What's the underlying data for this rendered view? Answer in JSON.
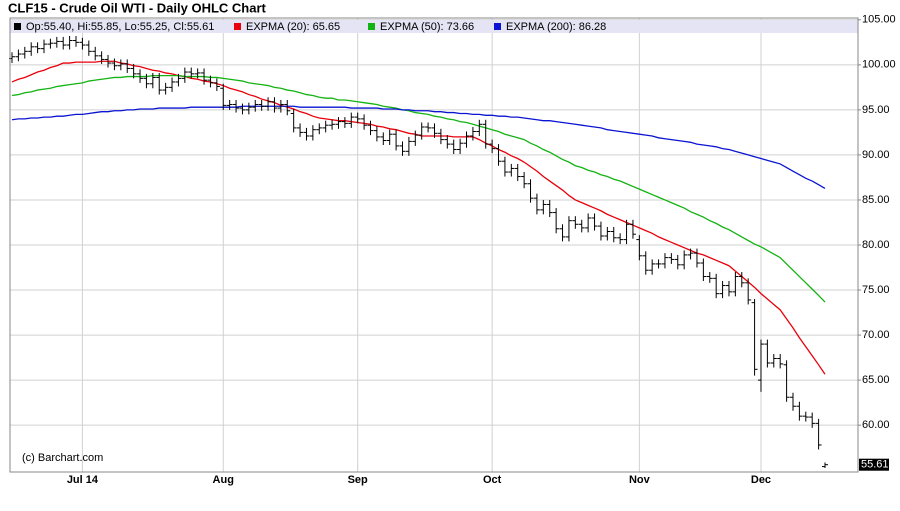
{
  "chart_data": {
    "type": "ohlc",
    "title": "CLF15 - Crude Oil WTI - Daily OHLC Chart",
    "watermark": "(c) Barchart.com",
    "categories": [
      null,
      null,
      null,
      null,
      null,
      null,
      null,
      null,
      null,
      null,
      null,
      "Jul 14",
      null,
      null,
      null,
      null,
      null,
      null,
      null,
      null,
      null,
      null,
      null,
      null,
      null,
      null,
      null,
      null,
      null,
      null,
      null,
      null,
      null,
      "Aug",
      null,
      null,
      null,
      null,
      null,
      null,
      null,
      null,
      null,
      null,
      null,
      null,
      null,
      null,
      null,
      null,
      null,
      null,
      null,
      null,
      "Sep",
      null,
      null,
      null,
      null,
      null,
      null,
      null,
      null,
      null,
      null,
      null,
      null,
      null,
      null,
      null,
      null,
      null,
      null,
      null,
      null,
      "Oct",
      null,
      null,
      null,
      null,
      null,
      null,
      null,
      null,
      null,
      null,
      null,
      null,
      null,
      null,
      null,
      null,
      null,
      null,
      null,
      null,
      null,
      null,
      "Nov",
      null,
      null,
      null,
      null,
      null,
      null,
      null,
      null,
      null,
      null,
      null,
      null,
      null,
      null,
      null,
      null,
      null,
      null,
      "Dec",
      null,
      null,
      null,
      null,
      null,
      null,
      null,
      null,
      null,
      null
    ],
    "ohlc": {
      "name": "Op:55.40, Hi:55.85, Lo:55.25, Cl:55.61",
      "color": "#000000",
      "open": [
        100.7,
        100.9,
        101.2,
        101.5,
        102.0,
        101.8,
        102.3,
        102.4,
        102.6,
        102.2,
        102.7,
        102.5,
        102.2,
        101.5,
        101.0,
        100.6,
        100.2,
        99.9,
        100.1,
        99.6,
        99.0,
        98.5,
        97.9,
        98.6,
        97.2,
        97.5,
        98.1,
        98.5,
        99.2,
        99.0,
        99.1,
        98.3,
        98.0,
        97.4,
        95.5,
        95.6,
        95.2,
        95.0,
        95.3,
        95.6,
        95.4,
        95.9,
        95.2,
        95.6,
        94.6,
        93.0,
        92.5,
        92.1,
        92.8,
        93.0,
        93.3,
        93.4,
        93.7,
        93.5,
        94.2,
        94.0,
        93.3,
        92.7,
        92.0,
        91.6,
        92.3,
        91.0,
        90.4,
        91.5,
        92.2,
        93.1,
        93.0,
        92.4,
        91.7,
        91.2,
        90.6,
        91.3,
        92.1,
        92.6,
        93.4,
        91.2,
        90.7,
        89.3,
        88.1,
        88.5,
        87.6,
        86.8,
        85.2,
        83.9,
        84.5,
        83.6,
        81.8,
        80.9,
        82.7,
        82.3,
        81.9,
        83.0,
        82.1,
        81.0,
        81.5,
        80.8,
        80.6,
        82.3,
        80.6,
        78.8,
        77.2,
        77.9,
        77.9,
        78.6,
        78.4,
        77.8,
        78.9,
        79.1,
        78.0,
        76.5,
        76.3,
        74.6,
        75.5,
        74.8,
        76.5,
        75.8,
        73.6,
        65.0,
        69.0,
        66.9,
        67.4,
        66.7,
        63.1,
        62.1,
        61.0,
        60.9,
        60.2,
        55.4
      ],
      "high": [
        101.4,
        101.7,
        102.0,
        102.5,
        102.5,
        102.8,
        102.9,
        103.1,
        103.1,
        103.2,
        103.2,
        103.0,
        102.7,
        102.0,
        101.5,
        101.1,
        100.7,
        100.6,
        100.6,
        100.1,
        99.5,
        99.0,
        99.1,
        99.1,
        98.0,
        98.6,
        99.0,
        99.7,
        99.7,
        99.6,
        99.6,
        98.8,
        98.5,
        97.9,
        96.1,
        96.1,
        95.7,
        95.8,
        96.1,
        96.1,
        96.4,
        96.4,
        96.1,
        96.1,
        95.1,
        93.5,
        93.0,
        93.3,
        93.5,
        93.8,
        93.9,
        94.2,
        94.2,
        94.7,
        94.7,
        94.5,
        93.8,
        93.2,
        92.5,
        92.8,
        92.8,
        91.5,
        92.0,
        92.7,
        93.6,
        93.6,
        93.5,
        92.9,
        92.2,
        91.7,
        91.8,
        92.6,
        93.1,
        93.9,
        93.9,
        91.7,
        91.2,
        89.8,
        89.0,
        89.0,
        88.1,
        87.3,
        85.7,
        85.0,
        85.0,
        84.1,
        82.3,
        83.2,
        83.2,
        82.8,
        83.5,
        83.5,
        82.6,
        82.0,
        82.0,
        81.3,
        82.8,
        82.8,
        81.1,
        79.3,
        78.4,
        78.4,
        79.1,
        79.1,
        78.9,
        79.4,
        79.6,
        79.6,
        78.5,
        77.0,
        76.8,
        76.0,
        76.0,
        77.0,
        77.0,
        76.3,
        74.0,
        69.5,
        69.5,
        67.9,
        67.9,
        67.2,
        63.6,
        62.6,
        61.5,
        61.4,
        60.7,
        55.85
      ],
      "low": [
        100.2,
        100.4,
        100.7,
        101.0,
        101.3,
        101.3,
        101.8,
        101.9,
        101.7,
        101.7,
        102.0,
        101.7,
        101.0,
        100.5,
        100.1,
        99.7,
        99.4,
        99.4,
        99.1,
        98.5,
        98.0,
        97.4,
        97.4,
        96.7,
        96.7,
        97.0,
        97.6,
        98.0,
        98.5,
        98.5,
        97.8,
        97.5,
        97.1,
        95.0,
        95.0,
        94.7,
        94.5,
        94.5,
        94.8,
        94.9,
        94.9,
        94.7,
        94.7,
        94.4,
        92.5,
        92.0,
        91.6,
        91.6,
        92.3,
        92.5,
        92.8,
        92.9,
        93.0,
        93.0,
        93.5,
        92.8,
        92.2,
        91.5,
        91.1,
        91.1,
        90.5,
        89.9,
        89.9,
        91.0,
        91.7,
        92.5,
        91.9,
        91.2,
        90.7,
        90.1,
        90.1,
        90.8,
        91.6,
        92.1,
        90.7,
        90.2,
        88.8,
        87.6,
        87.6,
        87.1,
        86.3,
        84.7,
        83.4,
        83.4,
        83.1,
        81.3,
        80.4,
        80.4,
        81.8,
        81.4,
        81.4,
        81.6,
        80.5,
        80.5,
        80.3,
        80.1,
        80.1,
        80.7,
        78.3,
        76.7,
        76.7,
        77.4,
        77.4,
        77.9,
        77.3,
        77.3,
        78.4,
        77.5,
        76.0,
        75.8,
        74.1,
        74.1,
        74.3,
        74.3,
        75.3,
        73.4,
        65.5,
        63.7,
        66.4,
        66.4,
        66.3,
        62.6,
        61.6,
        60.5,
        60.4,
        59.7,
        57.3,
        55.25
      ],
      "close": [
        100.9,
        101.2,
        101.5,
        102.0,
        101.8,
        102.3,
        102.4,
        102.6,
        102.2,
        102.7,
        102.5,
        102.2,
        101.5,
        101.0,
        100.6,
        100.2,
        99.9,
        100.1,
        99.6,
        99.0,
        98.5,
        97.9,
        98.6,
        97.2,
        97.5,
        98.1,
        98.5,
        99.2,
        99.0,
        99.1,
        98.3,
        98.0,
        97.6,
        95.5,
        95.6,
        95.2,
        95.0,
        95.3,
        95.6,
        95.4,
        95.9,
        95.2,
        95.6,
        94.9,
        93.0,
        92.5,
        92.1,
        92.8,
        93.0,
        93.3,
        93.4,
        93.7,
        93.5,
        94.2,
        94.0,
        93.3,
        92.7,
        92.0,
        91.6,
        92.3,
        91.0,
        90.4,
        91.5,
        92.2,
        93.1,
        93.0,
        92.4,
        91.7,
        91.2,
        90.6,
        91.3,
        92.1,
        92.6,
        93.4,
        91.2,
        90.7,
        89.3,
        88.1,
        88.5,
        87.6,
        86.8,
        85.2,
        83.9,
        84.5,
        83.6,
        81.8,
        80.9,
        82.7,
        82.3,
        81.9,
        83.0,
        82.1,
        81.0,
        81.5,
        80.8,
        80.6,
        82.3,
        81.2,
        78.8,
        77.2,
        77.9,
        77.9,
        78.6,
        78.4,
        77.8,
        78.9,
        79.1,
        78.0,
        76.5,
        76.3,
        74.6,
        75.5,
        74.8,
        76.5,
        75.8,
        73.9,
        66.2,
        69.0,
        66.9,
        67.4,
        66.8,
        63.1,
        62.1,
        61.0,
        60.9,
        60.2,
        57.8,
        55.61
      ]
    },
    "series": [
      {
        "name": "EXPMA (20): 65.65",
        "color": "#e8000b",
        "values": [
          98.1,
          98.4,
          98.6,
          98.9,
          99.2,
          99.4,
          99.7,
          99.9,
          100.2,
          100.2,
          100.3,
          100.3,
          100.3,
          100.3,
          100.4,
          100.4,
          100.4,
          100.2,
          100.1,
          99.9,
          99.8,
          99.6,
          99.4,
          99.3,
          99.1,
          99.0,
          98.8,
          98.7,
          98.5,
          98.4,
          98.2,
          98.1,
          97.9,
          97.7,
          97.4,
          97.2,
          97.0,
          96.7,
          96.5,
          96.2,
          96.0,
          95.8,
          95.5,
          95.3,
          95.1,
          94.8,
          94.6,
          94.3,
          94.1,
          94.0,
          93.9,
          93.8,
          93.8,
          93.7,
          93.6,
          93.5,
          93.4,
          93.2,
          93.1,
          92.9,
          92.8,
          92.6,
          92.4,
          92.3,
          92.1,
          92.1,
          92.1,
          92.1,
          92.1,
          92.0,
          92.0,
          92.0,
          92.0,
          91.7,
          91.3,
          91.0,
          90.6,
          90.3,
          89.9,
          89.6,
          89.2,
          88.7,
          88.2,
          87.6,
          87.1,
          86.6,
          86.1,
          85.5,
          85.0,
          84.7,
          84.4,
          84.1,
          83.8,
          83.4,
          83.1,
          82.8,
          82.5,
          82.2,
          81.9,
          81.6,
          81.3,
          80.9,
          80.6,
          80.3,
          80.0,
          79.7,
          79.4,
          79.1,
          78.9,
          78.6,
          78.3,
          78.0,
          77.7,
          77.1,
          76.5,
          75.9,
          75.3,
          74.6,
          74.0,
          73.4,
          72.8,
          71.8,
          70.8,
          69.7,
          68.7,
          67.7,
          66.7,
          65.65
        ]
      },
      {
        "name": "EXPMA (50): 73.66",
        "color": "#12b312",
        "values": [
          96.6,
          96.7,
          96.9,
          97.0,
          97.2,
          97.3,
          97.4,
          97.6,
          97.7,
          97.8,
          97.9,
          98.0,
          98.2,
          98.3,
          98.4,
          98.5,
          98.6,
          98.6,
          98.7,
          98.7,
          98.7,
          98.7,
          98.8,
          98.8,
          98.8,
          98.8,
          98.8,
          98.7,
          98.7,
          98.7,
          98.7,
          98.6,
          98.6,
          98.5,
          98.4,
          98.3,
          98.2,
          98.0,
          97.9,
          97.8,
          97.7,
          97.5,
          97.4,
          97.2,
          97.1,
          96.9,
          96.7,
          96.6,
          96.4,
          96.3,
          96.3,
          96.1,
          96.1,
          96.0,
          95.9,
          95.8,
          95.7,
          95.6,
          95.4,
          95.3,
          95.2,
          95.0,
          94.9,
          94.7,
          94.6,
          94.5,
          94.3,
          94.2,
          94.0,
          93.9,
          93.7,
          93.6,
          93.4,
          93.2,
          93.0,
          92.8,
          92.6,
          92.3,
          92.1,
          91.9,
          91.7,
          91.3,
          91.0,
          90.6,
          90.3,
          89.9,
          89.5,
          89.2,
          88.8,
          88.6,
          88.3,
          88.1,
          87.8,
          87.6,
          87.3,
          87.1,
          86.8,
          86.5,
          86.2,
          85.9,
          85.6,
          85.3,
          85.0,
          84.7,
          84.4,
          84.1,
          83.7,
          83.4,
          83.1,
          82.7,
          82.4,
          82.0,
          81.7,
          81.3,
          80.9,
          80.5,
          80.1,
          79.8,
          79.4,
          79.0,
          78.6,
          77.9,
          77.2,
          76.5,
          75.8,
          75.1,
          74.4,
          73.66
        ]
      },
      {
        "name": "EXPMA (200): 86.28",
        "color": "#0a14d2",
        "values": [
          93.9,
          94.0,
          94.0,
          94.1,
          94.1,
          94.2,
          94.2,
          94.3,
          94.3,
          94.4,
          94.5,
          94.5,
          94.6,
          94.7,
          94.8,
          94.8,
          94.9,
          94.9,
          95.0,
          95.0,
          95.1,
          95.1,
          95.1,
          95.2,
          95.2,
          95.2,
          95.2,
          95.2,
          95.3,
          95.3,
          95.3,
          95.3,
          95.3,
          95.3,
          95.3,
          95.3,
          95.4,
          95.4,
          95.4,
          95.4,
          95.4,
          95.4,
          95.4,
          95.4,
          95.4,
          95.3,
          95.3,
          95.3,
          95.3,
          95.3,
          95.3,
          95.3,
          95.3,
          95.2,
          95.2,
          95.2,
          95.2,
          95.2,
          95.1,
          95.1,
          95.1,
          95.0,
          95.0,
          94.9,
          94.9,
          94.9,
          94.8,
          94.8,
          94.7,
          94.7,
          94.6,
          94.6,
          94.5,
          94.5,
          94.4,
          94.4,
          94.3,
          94.3,
          94.2,
          94.2,
          94.1,
          94.0,
          93.9,
          93.8,
          93.8,
          93.7,
          93.6,
          93.5,
          93.4,
          93.3,
          93.2,
          93.1,
          93.0,
          92.8,
          92.7,
          92.6,
          92.5,
          92.4,
          92.3,
          92.2,
          92.1,
          91.9,
          91.8,
          91.7,
          91.6,
          91.5,
          91.4,
          91.2,
          91.1,
          91.0,
          90.9,
          90.7,
          90.6,
          90.4,
          90.2,
          90.0,
          89.8,
          89.6,
          89.4,
          89.2,
          89.0,
          88.6,
          88.2,
          87.8,
          87.4,
          87.1,
          86.7,
          86.28
        ]
      }
    ],
    "ylim": [
      54.8,
      105.2
    ],
    "yticks": [
      {
        "value": 105,
        "label": "105.00"
      },
      {
        "value": 100,
        "label": "100.00"
      },
      {
        "value": 95,
        "label": "95.00"
      },
      {
        "value": 90,
        "label": "90.00"
      },
      {
        "value": 85,
        "label": "85.00"
      },
      {
        "value": 80,
        "label": "80.00"
      },
      {
        "value": 75,
        "label": "75.00"
      },
      {
        "value": 70,
        "label": "70.00"
      },
      {
        "value": 65,
        "label": "65.00"
      },
      {
        "value": 60,
        "label": "60.00"
      }
    ],
    "grid": true
  }
}
